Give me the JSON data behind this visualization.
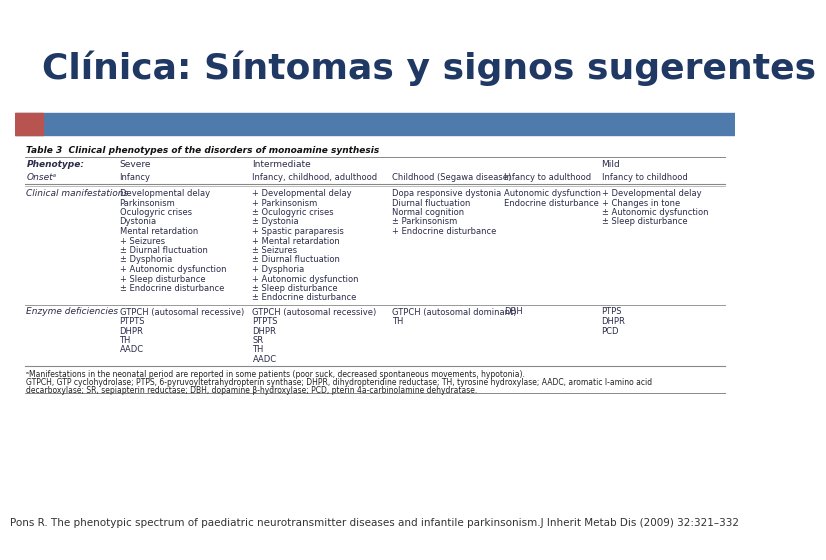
{
  "title": "Clínica: Síntomas y signos sugerentes",
  "title_color": "#1f3864",
  "title_fontsize": 26,
  "footer_text": "Pons R. The phenotypic spectrum of paediatric neurotransmitter diseases and infantile parkinsonism.J Inherit Metab Dis (2009) 32:321–332",
  "footer_fontsize": 7.5,
  "bg_color": "#ffffff",
  "header_bar_color": "#4f7bac",
  "header_bar_left_color": "#b85450",
  "table_title": "Table 3  Clinical phenotypes of the disorders of monoamine synthesis",
  "table_title_fontsize": 6.5,
  "col_headers": [
    "Phenotype:",
    "Severe",
    "Intermediate",
    "",
    "",
    "Mild"
  ],
  "onset_row": [
    "Onsetᵃ",
    "Infancy",
    "Infancy, childhood, adulthood",
    "Childhood (Segawa disease)",
    "Infancy to adulthood",
    "Infancy to childhood"
  ],
  "clinical_label": "Clinical manifestations",
  "clinical_col1": [
    "Developmental delay",
    "Parkinsonism",
    "Oculogyric crises",
    "Dystonia",
    "Mental retardation",
    "+ Seizures",
    "± Diurnal fluctuation",
    "± Dysphoria",
    "+ Autonomic dysfunction",
    "+ Sleep disturbance",
    "± Endocrine disturbance"
  ],
  "clinical_col2": [
    "+ Developmental delay",
    "+ Parkinsonism",
    "± Oculogyric crises",
    "± Dystonia",
    "+ Spastic paraparesis",
    "+ Mental retardation",
    "± Seizures",
    "± Diurnal fluctuation",
    "+ Dysphoria",
    "+ Autonomic dysfunction",
    "± Sleep disturbance",
    "± Endocrine disturbance"
  ],
  "clinical_col3": [
    "Dopa responsive dystonia",
    "Diurnal fluctuation",
    "Normal cognition",
    "± Parkinsonism",
    "+ Endocrine disturbance"
  ],
  "clinical_col4": [
    "Autonomic dysfunction",
    "Endocrine disturbance"
  ],
  "clinical_col5": [
    "+ Developmental delay",
    "+ Changes in tone",
    "± Autonomic dysfunction",
    "± Sleep disturbance"
  ],
  "enzyme_label": "Enzyme deficiencies",
  "enzyme_col1": [
    "GTPCH (autosomal recessive)",
    "PTPTS",
    "DHPR",
    "TH",
    "AADC"
  ],
  "enzyme_col2": [
    "GTPCH (autosomal recessive)",
    "PTPTS",
    "DHPR",
    "SR",
    "TH",
    "AADC"
  ],
  "enzyme_col3": [
    "GTPCH (autosomal dominant)",
    "TH"
  ],
  "enzyme_col4": [
    "DBH"
  ],
  "enzyme_col5": [
    "PTPS",
    "DHPR",
    "PCD"
  ],
  "footnote1": "ᵃManifestations in the neonatal period are reported in some patients (poor suck, decreased spontaneous movements, hypotonia).",
  "footnote2": "GTPCH, GTP cyclohydrolase; PTPS, 6-pyruvoyltetrahydropterin synthase; DHPR, dihydropteridine reductase; TH, tyrosine hydroxylase; AADC, aromatic l-amino acid",
  "footnote3": "decarboxylase; SR, sepiapterin reductase; DBH, dopamine β-hydroxylase; PCD, pterin 4a-carbinolamine dehydratase.",
  "table_text_color": "#2c2c4a",
  "line_color": "#888888"
}
